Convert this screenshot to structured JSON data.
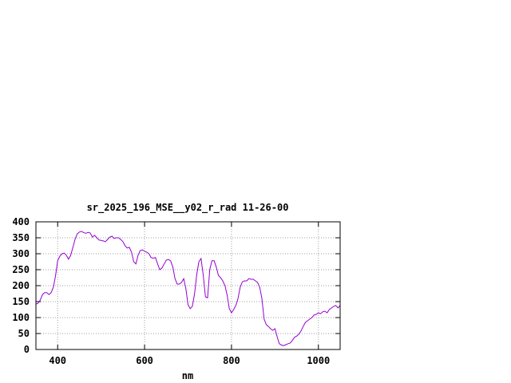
{
  "chart_data": {
    "type": "line",
    "title": "sr_2025_196_MSE__y02_r_rad 11-26-00",
    "xlabel": "nm",
    "ylabel": "",
    "xlim": [
      350,
      1050
    ],
    "ylim": [
      0,
      400
    ],
    "xticks": [
      400,
      600,
      800,
      1000
    ],
    "yticks": [
      0,
      50,
      100,
      150,
      200,
      250,
      300,
      350,
      400
    ],
    "grid": true,
    "line_color": "#9400d3",
    "series": [
      {
        "x": [
          350,
          355,
          360,
          365,
          370,
          375,
          380,
          385,
          390,
          395,
          400,
          405,
          410,
          415,
          420,
          425,
          430,
          435,
          440,
          445,
          450,
          455,
          460,
          465,
          470,
          475,
          480,
          485,
          490,
          495,
          500,
          505,
          510,
          515,
          520,
          525,
          530,
          535,
          540,
          545,
          550,
          555,
          560,
          565,
          570,
          575,
          580,
          585,
          590,
          595,
          600,
          605,
          610,
          615,
          620,
          625,
          630,
          635,
          640,
          645,
          650,
          655,
          660,
          665,
          670,
          675,
          680,
          685,
          690,
          695,
          700,
          705,
          710,
          715,
          720,
          725,
          730,
          735,
          740,
          745,
          750,
          755,
          760,
          765,
          770,
          775,
          780,
          785,
          790,
          795,
          800,
          805,
          810,
          815,
          820,
          825,
          830,
          835,
          840,
          845,
          850,
          855,
          860,
          865,
          870,
          875,
          880,
          885,
          890,
          895,
          900,
          905,
          910,
          915,
          920,
          925,
          930,
          935,
          940,
          945,
          950,
          955,
          960,
          965,
          970,
          975,
          980,
          985,
          990,
          995,
          1000,
          1005,
          1010,
          1015,
          1020,
          1025,
          1030,
          1035,
          1040,
          1045,
          1050
        ],
        "values": [
          142,
          145,
          155,
          172,
          178,
          178,
          172,
          178,
          195,
          230,
          278,
          292,
          300,
          302,
          295,
          283,
          295,
          320,
          345,
          362,
          368,
          370,
          366,
          364,
          367,
          365,
          352,
          358,
          350,
          343,
          342,
          340,
          338,
          345,
          352,
          355,
          348,
          350,
          350,
          345,
          338,
          325,
          318,
          320,
          305,
          275,
          268,
          295,
          310,
          312,
          308,
          305,
          300,
          288,
          286,
          288,
          268,
          250,
          255,
          268,
          280,
          282,
          278,
          258,
          222,
          205,
          205,
          210,
          222,
          190,
          140,
          128,
          135,
          175,
          235,
          275,
          285,
          232,
          165,
          162,
          250,
          278,
          278,
          258,
          232,
          225,
          215,
          200,
          170,
          128,
          115,
          125,
          138,
          160,
          195,
          212,
          215,
          215,
          222,
          220,
          220,
          215,
          210,
          195,
          160,
          95,
          78,
          72,
          65,
          60,
          65,
          40,
          18,
          14,
          12,
          15,
          18,
          20,
          28,
          38,
          42,
          48,
          58,
          72,
          85,
          90,
          95,
          100,
          108,
          110,
          115,
          112,
          118,
          120,
          115,
          125,
          130,
          135,
          138,
          130,
          138
        ]
      }
    ]
  }
}
